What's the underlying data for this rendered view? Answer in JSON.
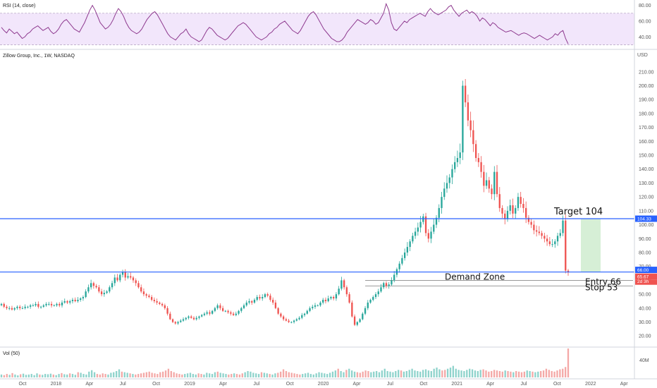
{
  "chart_data": [
    {
      "type": "line",
      "panel": "rsi",
      "legend": "RSI (14, close)",
      "ylim": [
        25,
        85
      ],
      "y_ticks": [
        "80.00",
        "60.00",
        "40.00"
      ],
      "band": [
        30,
        70
      ],
      "colors": {
        "line": "#8e3a8f",
        "band": "#f2e6fb",
        "band_edge": "#b9a6c8"
      },
      "values": [
        52,
        48,
        45,
        50,
        47,
        44,
        46,
        42,
        38,
        40,
        44,
        46,
        50,
        52,
        54,
        51,
        48,
        50,
        52,
        47,
        44,
        46,
        50,
        56,
        60,
        62,
        58,
        54,
        50,
        48,
        46,
        52,
        58,
        66,
        74,
        80,
        74,
        66,
        58,
        54,
        50,
        52,
        56,
        62,
        70,
        76,
        72,
        66,
        58,
        52,
        48,
        46,
        44,
        46,
        50,
        56,
        62,
        66,
        70,
        72,
        68,
        62,
        56,
        50,
        44,
        40,
        38,
        36,
        40,
        44,
        46,
        50,
        44,
        40,
        38,
        36,
        34,
        36,
        42,
        48,
        52,
        50,
        46,
        42,
        40,
        38,
        36,
        38,
        42,
        46,
        50,
        54,
        56,
        58,
        56,
        52,
        48,
        44,
        40,
        38,
        36,
        38,
        40,
        44,
        46,
        50,
        52,
        56,
        58,
        60,
        56,
        52,
        48,
        46,
        44,
        48,
        54,
        60,
        66,
        70,
        72,
        68,
        62,
        56,
        50,
        46,
        42,
        38,
        36,
        34,
        34,
        36,
        40,
        46,
        50,
        54,
        58,
        62,
        60,
        58,
        56,
        58,
        62,
        60,
        56,
        58,
        64,
        70,
        82,
        74,
        58,
        50,
        48,
        52,
        56,
        60,
        58,
        62,
        64,
        66,
        68,
        70,
        68,
        66,
        72,
        76,
        72,
        70,
        68,
        70,
        72,
        74,
        78,
        80,
        74,
        70,
        66,
        70,
        72,
        74,
        70,
        72,
        70,
        66,
        60,
        64,
        62,
        58,
        54,
        58,
        56,
        52,
        50,
        48,
        46,
        47,
        48,
        46,
        44,
        42,
        44,
        45,
        44,
        42,
        40,
        38,
        40,
        42,
        40,
        38,
        36,
        38,
        40,
        44,
        42,
        46,
        48,
        38,
        31
      ]
    },
    {
      "type": "candlestick",
      "panel": "price",
      "title": "Zillow Group, Inc., 1W, NASDAQ",
      "y_unit": "USD",
      "ylim": [
        13,
        218
      ],
      "y_ticks": [
        "210.00",
        "200.00",
        "190.00",
        "180.00",
        "170.00",
        "160.00",
        "150.00",
        "140.00",
        "130.00",
        "120.00",
        "110.00",
        "100.00",
        "90.00",
        "80.00",
        "70.00",
        "60.00",
        "50.00",
        "40.00",
        "30.00",
        "20.00"
      ],
      "colors": {
        "up": "#26a69a",
        "down": "#ef5350",
        "level": "#2962ff",
        "support": "#777777",
        "target_zone": "#d6efd6"
      },
      "closes": [
        43,
        41,
        40,
        40,
        39,
        40,
        41,
        40,
        40,
        41,
        41,
        42,
        42,
        43,
        41,
        41,
        42,
        43,
        43,
        42,
        42,
        43,
        42,
        44,
        45,
        44,
        45,
        46,
        45,
        46,
        47,
        48,
        52,
        55,
        58,
        56,
        55,
        52,
        50,
        51,
        52,
        55,
        58,
        62,
        60,
        64,
        66,
        62,
        63,
        62,
        60,
        58,
        55,
        52,
        50,
        49,
        48,
        46,
        45,
        44,
        43,
        42,
        40,
        36,
        32,
        30,
        29,
        30,
        31,
        32,
        33,
        34,
        33,
        32,
        33,
        34,
        35,
        36,
        37,
        36,
        38,
        40,
        42,
        40,
        38,
        38,
        37,
        36,
        35,
        36,
        38,
        40,
        42,
        44,
        45,
        44,
        46,
        48,
        47,
        48,
        50,
        49,
        46,
        44,
        40,
        36,
        34,
        32,
        31,
        30,
        30,
        31,
        32,
        33,
        35,
        36,
        38,
        40,
        41,
        42,
        42,
        44,
        46,
        45,
        47,
        48,
        47,
        50,
        54,
        60,
        55,
        50,
        44,
        34,
        28,
        30,
        32,
        36,
        40,
        44,
        46,
        48,
        50,
        52,
        55,
        58,
        56,
        57,
        60,
        64,
        68,
        72,
        76,
        80,
        84,
        88,
        92,
        95,
        98,
        102,
        106,
        94,
        90,
        95,
        100,
        105,
        112,
        120,
        126,
        130,
        134,
        140,
        145,
        148,
        152,
        200,
        188,
        175,
        168,
        158,
        148,
        145,
        138,
        128,
        132,
        126,
        122,
        138,
        122,
        112,
        108,
        104,
        110,
        114,
        108,
        112,
        120,
        115,
        112,
        105,
        102,
        100,
        96,
        95,
        94,
        92,
        90,
        88,
        86,
        86,
        88,
        92,
        94,
        103,
        67,
        65.67
      ],
      "levels": {
        "target_line": 104.33,
        "entry_line": 66.0,
        "current_price": 65.67
      },
      "support_lines": [
        60,
        56
      ],
      "annotations": {
        "target": "Target 104",
        "demand": "Demand Zone",
        "entry": "Entry 66",
        "stop": "Stop  53"
      },
      "badges": {
        "target": "104.33",
        "entry": "66.00",
        "last": "65.67",
        "countdown": "2d 3h"
      }
    },
    {
      "type": "bar",
      "panel": "volume",
      "legend": "Vol (50)",
      "y_ticks": [
        "40M"
      ],
      "relative_values": [
        0.1,
        0.08,
        0.12,
        0.09,
        0.15,
        0.1,
        0.07,
        0.11,
        0.13,
        0.09,
        0.1,
        0.12,
        0.08,
        0.14,
        0.1,
        0.09,
        0.12,
        0.11,
        0.13,
        0.1,
        0.08,
        0.12,
        0.15,
        0.11,
        0.1,
        0.14,
        0.12,
        0.09,
        0.18,
        0.16,
        0.12,
        0.1,
        0.2,
        0.25,
        0.18,
        0.12,
        0.1,
        0.14,
        0.12,
        0.1,
        0.16,
        0.18,
        0.22,
        0.28,
        0.2,
        0.18,
        0.16,
        0.14,
        0.12,
        0.1,
        0.12,
        0.14,
        0.16,
        0.18,
        0.2,
        0.16,
        0.14,
        0.12,
        0.18,
        0.2,
        0.24,
        0.3,
        0.22,
        0.18,
        0.14,
        0.12,
        0.1,
        0.12,
        0.14,
        0.16,
        0.12,
        0.1,
        0.14,
        0.12,
        0.1,
        0.16,
        0.14,
        0.12,
        0.18,
        0.2,
        0.16,
        0.14,
        0.12,
        0.1,
        0.12,
        0.14,
        0.12,
        0.1,
        0.14,
        0.18,
        0.22,
        0.2,
        0.16,
        0.14,
        0.12,
        0.18,
        0.16,
        0.14,
        0.12,
        0.1,
        0.14,
        0.16,
        0.2,
        0.28,
        0.22,
        0.18,
        0.16,
        0.14,
        0.12,
        0.1,
        0.12,
        0.14,
        0.16,
        0.12,
        0.1,
        0.14,
        0.18,
        0.16,
        0.14,
        0.12,
        0.16,
        0.2,
        0.24,
        0.3,
        0.22,
        0.18,
        0.26,
        0.3,
        0.24,
        0.2,
        0.18,
        0.16,
        0.2,
        0.24,
        0.22,
        0.18,
        0.2,
        0.22,
        0.18,
        0.24,
        0.3,
        0.22,
        0.2,
        0.18,
        0.22,
        0.26,
        0.24,
        0.2,
        0.22,
        0.26,
        0.3,
        0.24,
        0.22,
        0.2,
        0.26,
        0.28,
        0.24,
        0.22,
        0.3,
        0.34,
        0.28,
        0.24,
        0.26,
        0.3,
        0.34,
        0.4,
        0.3,
        0.26,
        0.24,
        0.22,
        0.26,
        0.3,
        0.28,
        0.24,
        0.22,
        0.26,
        0.28,
        0.24,
        0.2,
        0.22,
        0.26,
        0.24,
        0.22,
        0.2,
        0.24,
        0.22,
        0.2,
        0.18,
        0.22,
        0.2,
        0.18,
        0.2,
        0.24,
        0.22,
        0.2,
        0.18,
        0.2,
        0.22,
        0.24,
        0.3,
        0.26,
        0.22,
        0.2,
        0.24,
        0.28,
        0.3,
        0.36,
        1.0
      ]
    }
  ],
  "x_axis_labels": [
    "Oct",
    "2018",
    "Apr",
    "Jul",
    "Oct",
    "2019",
    "Apr",
    "Jul",
    "Oct",
    "2020",
    "Apr",
    "Jul",
    "Oct",
    "2021",
    "Apr",
    "Jul",
    "Oct",
    "2022",
    "Apr"
  ]
}
